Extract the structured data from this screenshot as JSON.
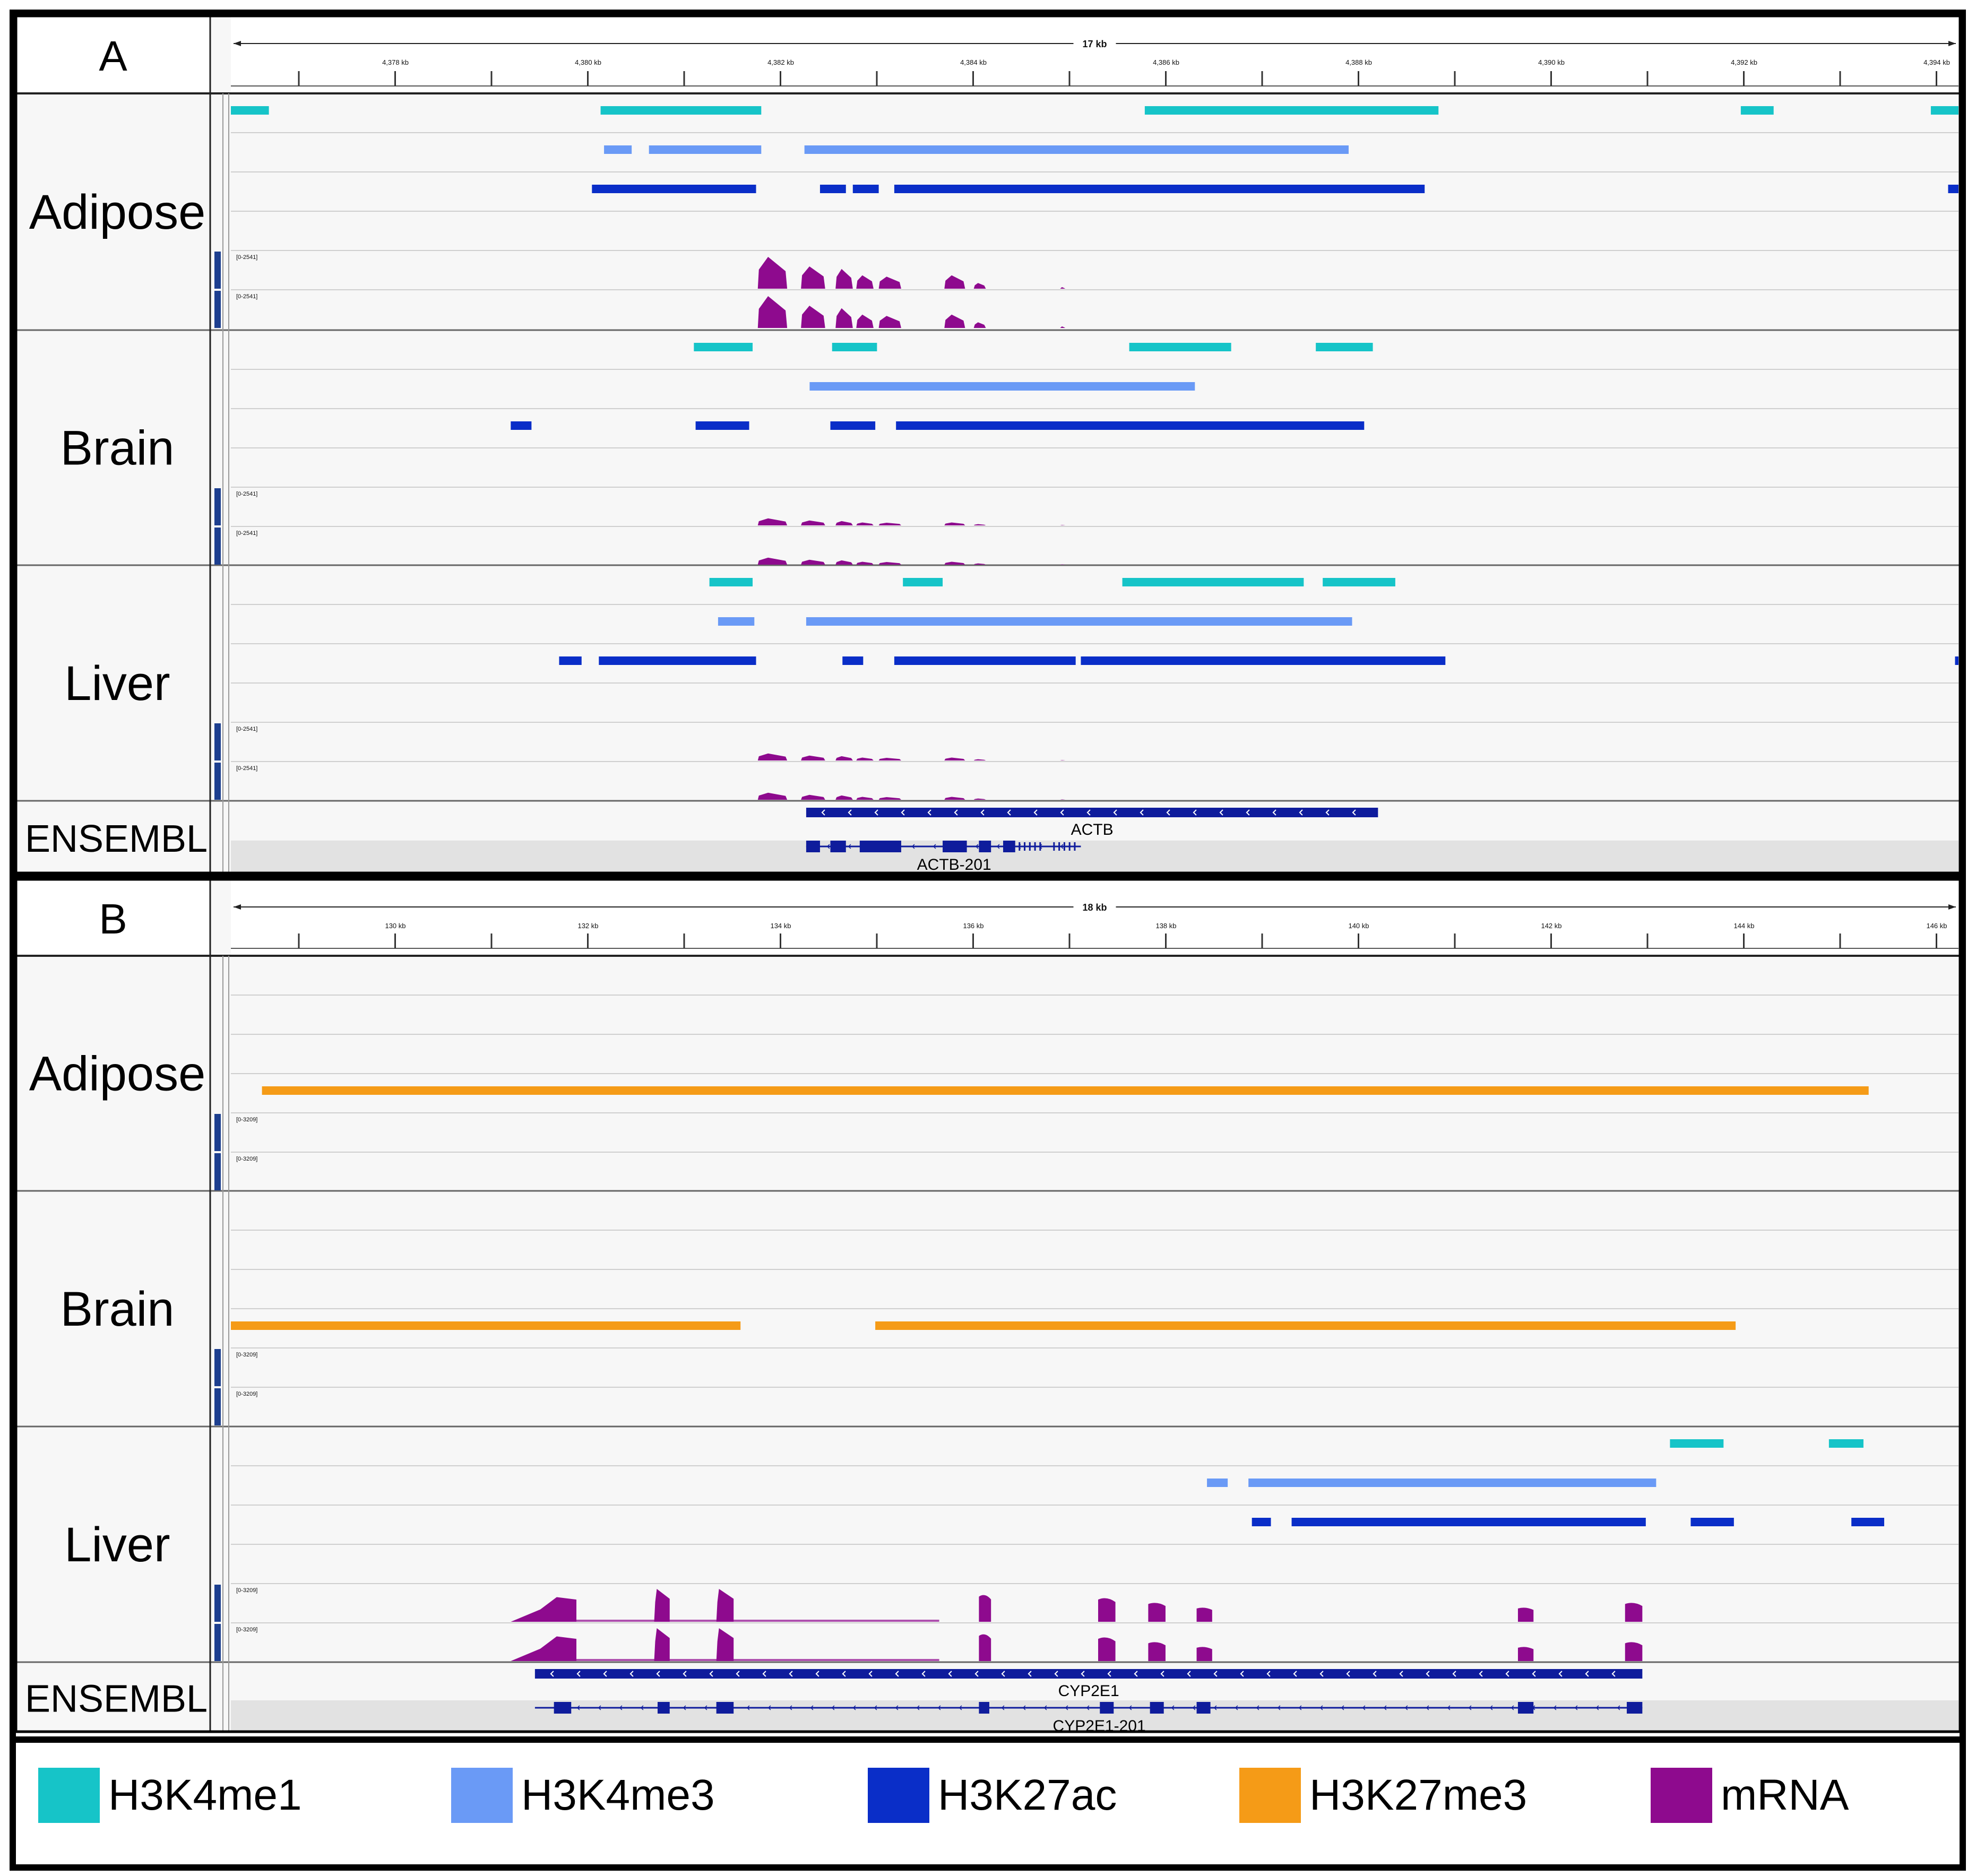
{
  "colors": {
    "H3K4me1": "#16c4c8",
    "H3K4me3": "#6a9af6",
    "H3K27ac": "#0a2ec8",
    "H3K27me3": "#f59b17",
    "mRNA": "#8e0a8e",
    "gene": "#0f1c9c"
  },
  "panels": [
    {
      "letter": "A",
      "span_label": "17 kb",
      "ticks": [
        "4,378 kb",
        "4,380 kb",
        "4,382 kb",
        "4,384 kb",
        "4,386 kb",
        "4,388 kb",
        "4,390 kb",
        "4,392 kb",
        "4,394 kb"
      ],
      "track_scale_label": "[0-2541]",
      "tissues": [
        {
          "name": "Adipose",
          "bars": {
            "H3K4me1": [
              [
                0.0,
                0.022
              ],
              [
                0.214,
                0.307
              ],
              [
                0.529,
                0.699
              ],
              [
                0.874,
                0.893
              ],
              [
                0.984,
                1.0
              ]
            ],
            "H3K4me3": [
              [
                0.216,
                0.232
              ],
              [
                0.242,
                0.307
              ],
              [
                0.332,
                0.647
              ]
            ],
            "H3K27ac": [
              [
                0.209,
                0.304
              ],
              [
                0.341,
                0.356
              ],
              [
                0.36,
                0.375
              ],
              [
                0.384,
                0.691
              ],
              [
                0.994,
                1.0
              ]
            ],
            "H3K27me3": []
          },
          "mrna": "actb_high"
        },
        {
          "name": "Brain",
          "bars": {
            "H3K4me1": [
              [
                0.268,
                0.302
              ],
              [
                0.348,
                0.374
              ],
              [
                0.52,
                0.579
              ],
              [
                0.628,
                0.661
              ]
            ],
            "H3K4me3": [
              [
                0.335,
                0.558
              ]
            ],
            "H3K27ac": [
              [
                0.162,
                0.174
              ],
              [
                0.269,
                0.3
              ],
              [
                0.347,
                0.373
              ],
              [
                0.385,
                0.656
              ]
            ],
            "H3K27me3": []
          },
          "mrna": "actb_low"
        },
        {
          "name": "Liver",
          "bars": {
            "H3K4me1": [
              [
                0.277,
                0.302
              ],
              [
                0.389,
                0.412
              ],
              [
                0.516,
                0.621
              ],
              [
                0.632,
                0.674
              ]
            ],
            "H3K4me3": [
              [
                0.282,
                0.303
              ],
              [
                0.333,
                0.649
              ]
            ],
            "H3K27ac": [
              [
                0.19,
                0.203
              ],
              [
                0.213,
                0.304
              ],
              [
                0.354,
                0.366
              ],
              [
                0.384,
                0.489
              ],
              [
                0.492,
                0.703
              ],
              [
                0.998,
                1.0
              ]
            ],
            "H3K27me3": []
          },
          "mrna": "actb_low"
        }
      ],
      "ensembl_label": "ENSEMBL",
      "gene": {
        "name": "ACTB",
        "transcript": "ACTB-201",
        "gene_span": [
          0.333,
          0.664
        ],
        "tx_span": [
          0.333,
          0.492
        ],
        "exons": [
          [
            0.333,
            0.341
          ],
          [
            0.347,
            0.356
          ],
          [
            0.364,
            0.388
          ],
          [
            0.412,
            0.426
          ],
          [
            0.433,
            0.44
          ],
          [
            0.447,
            0.454
          ]
        ],
        "utr_ticks": [
          0.456,
          0.459,
          0.462,
          0.465,
          0.468,
          0.476,
          0.479,
          0.482,
          0.485,
          0.488
        ]
      }
    },
    {
      "letter": "B",
      "span_label": "18 kb",
      "ticks": [
        "130 kb",
        "132 kb",
        "134 kb",
        "136 kb",
        "138 kb",
        "140 kb",
        "142 kb",
        "144 kb",
        "146 kb"
      ],
      "track_scale_label": "[0-3209]",
      "tissues": [
        {
          "name": "Adipose",
          "bars": {
            "H3K4me1": [],
            "H3K4me3": [],
            "H3K27ac": [],
            "H3K27me3": [
              [
                0.018,
                0.948
              ]
            ]
          },
          "mrna": "none"
        },
        {
          "name": "Brain",
          "bars": {
            "H3K4me1": [],
            "H3K4me3": [],
            "H3K27ac": [],
            "H3K27me3": [
              [
                0.0,
                0.295
              ],
              [
                0.373,
                0.871
              ]
            ]
          },
          "mrna": "none"
        },
        {
          "name": "Liver",
          "bars": {
            "H3K4me1": [
              [
                0.833,
                0.864
              ],
              [
                0.925,
                0.945
              ]
            ],
            "H3K4me3": [
              [
                0.565,
                0.577
              ],
              [
                0.589,
                0.825
              ]
            ],
            "H3K27ac": [
              [
                0.591,
                0.602
              ],
              [
                0.614,
                0.819
              ],
              [
                0.845,
                0.87
              ],
              [
                0.938,
                0.957
              ]
            ],
            "H3K27me3": []
          },
          "mrna": "cyp2e1"
        }
      ],
      "ensembl_label": "ENSEMBL",
      "gene": {
        "name": "CYP2E1",
        "transcript": "CYP2E1-201",
        "gene_span": [
          0.176,
          0.817
        ],
        "tx_span": [
          0.176,
          0.817
        ],
        "exons": [
          [
            0.187,
            0.197
          ],
          [
            0.247,
            0.254
          ],
          [
            0.281,
            0.291
          ],
          [
            0.433,
            0.439
          ],
          [
            0.503,
            0.511
          ],
          [
            0.532,
            0.54
          ],
          [
            0.559,
            0.567
          ],
          [
            0.745,
            0.754
          ],
          [
            0.808,
            0.817
          ]
        ],
        "utr_ticks": []
      }
    }
  ],
  "legend": [
    {
      "label": "H3K4me1",
      "color": "#16c4c8"
    },
    {
      "label": "H3K4me3",
      "color": "#6a9af6"
    },
    {
      "label": "H3K27ac",
      "color": "#0a2ec8"
    },
    {
      "label": "H3K27me3",
      "color": "#f59b17"
    },
    {
      "label": "mRNA",
      "color": "#8e0a8e"
    }
  ]
}
